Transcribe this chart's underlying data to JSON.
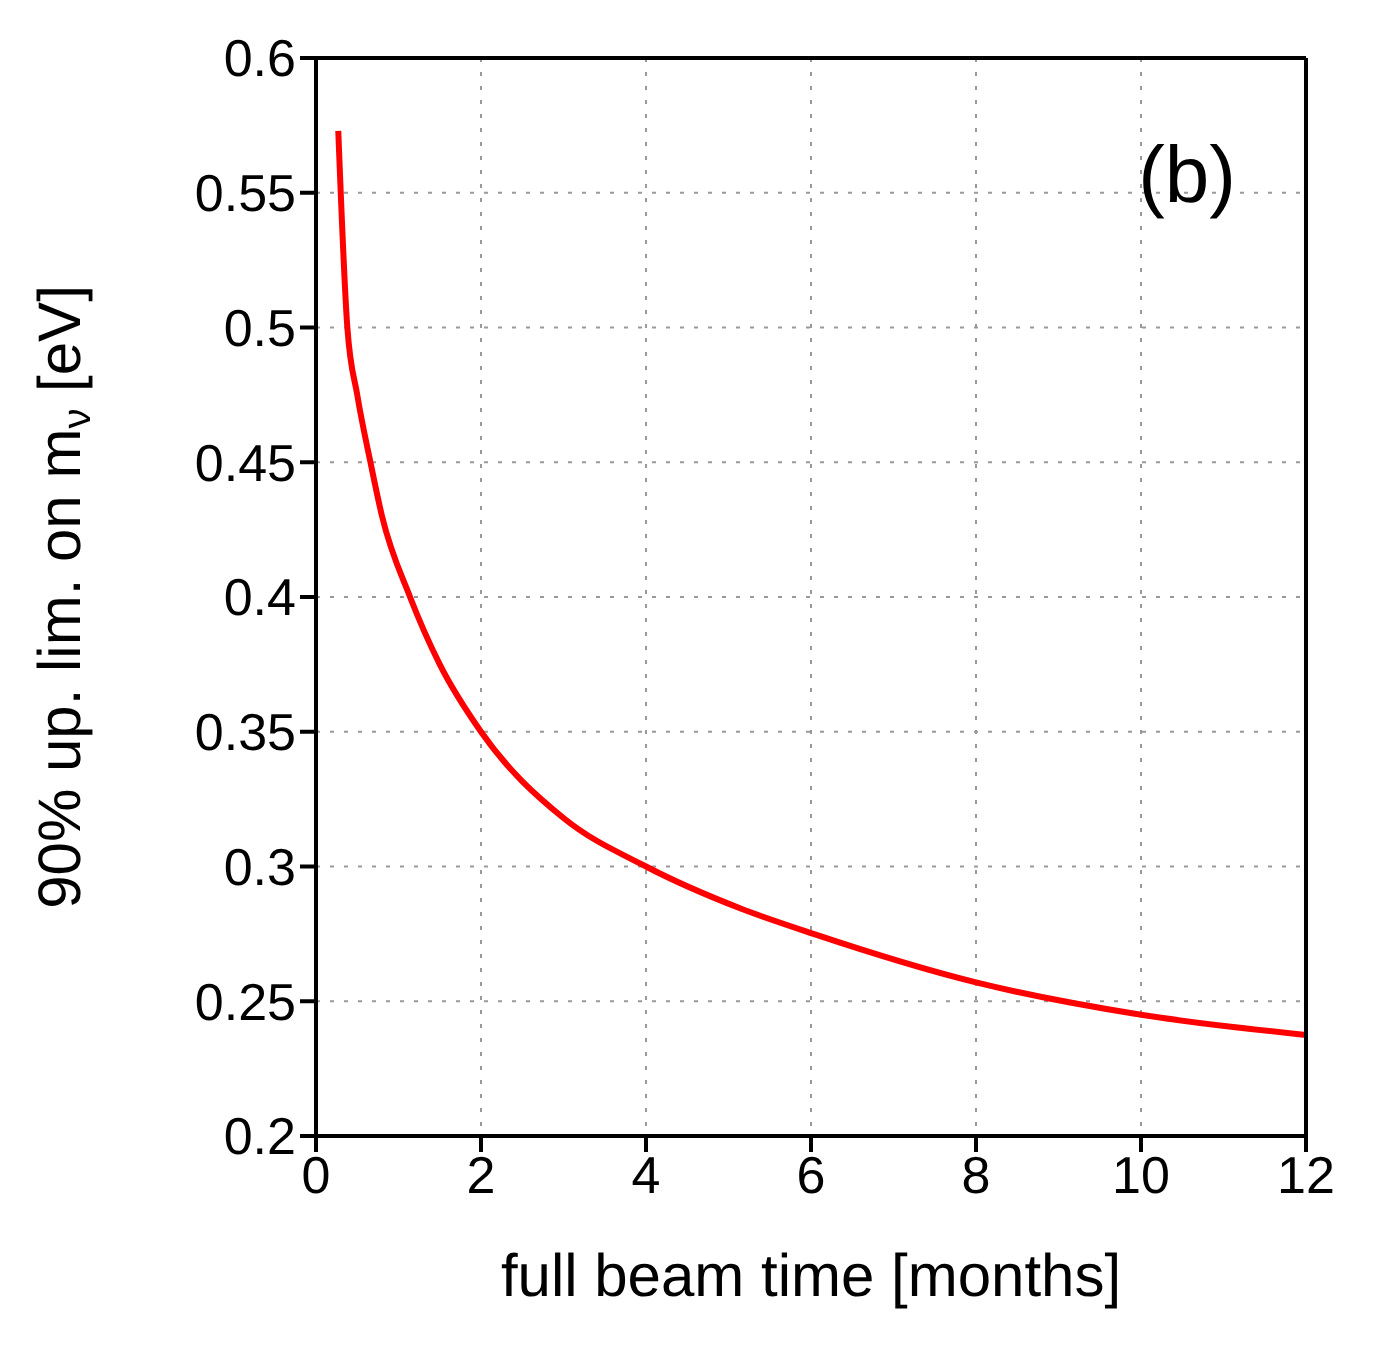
{
  "chart_data": {
    "type": "line",
    "xlabel": "full beam time [months]",
    "ylabel": "90% up. lim. on m$_{ν}$ [eV]",
    "annotations": [
      "(b)"
    ],
    "x": [
      0.27,
      0.38,
      0.5,
      0.66,
      0.8,
      1.14,
      1.5,
      2.0,
      3.0,
      4.0,
      5.14,
      6.03,
      8.0,
      10.0,
      12.0
    ],
    "series": [
      {
        "color": "#ff0000",
        "values": [
          0.573,
          0.5,
          0.475,
          0.45,
          0.43,
          0.4,
          0.375,
          0.35,
          0.318,
          0.3,
          0.2845,
          0.275,
          0.257,
          0.245,
          0.2375
        ]
      }
    ],
    "xlim": [
      0,
      12
    ],
    "xticks": [
      0,
      2,
      4,
      6,
      8,
      10,
      12
    ],
    "ylim": [
      0.2,
      0.6
    ],
    "yticks": [
      0.2,
      0.25,
      0.3,
      0.35,
      0.4,
      0.45,
      0.5,
      0.55,
      0.6
    ],
    "grid": true,
    "line_style": "solid",
    "marker": "none",
    "legend": false
  }
}
